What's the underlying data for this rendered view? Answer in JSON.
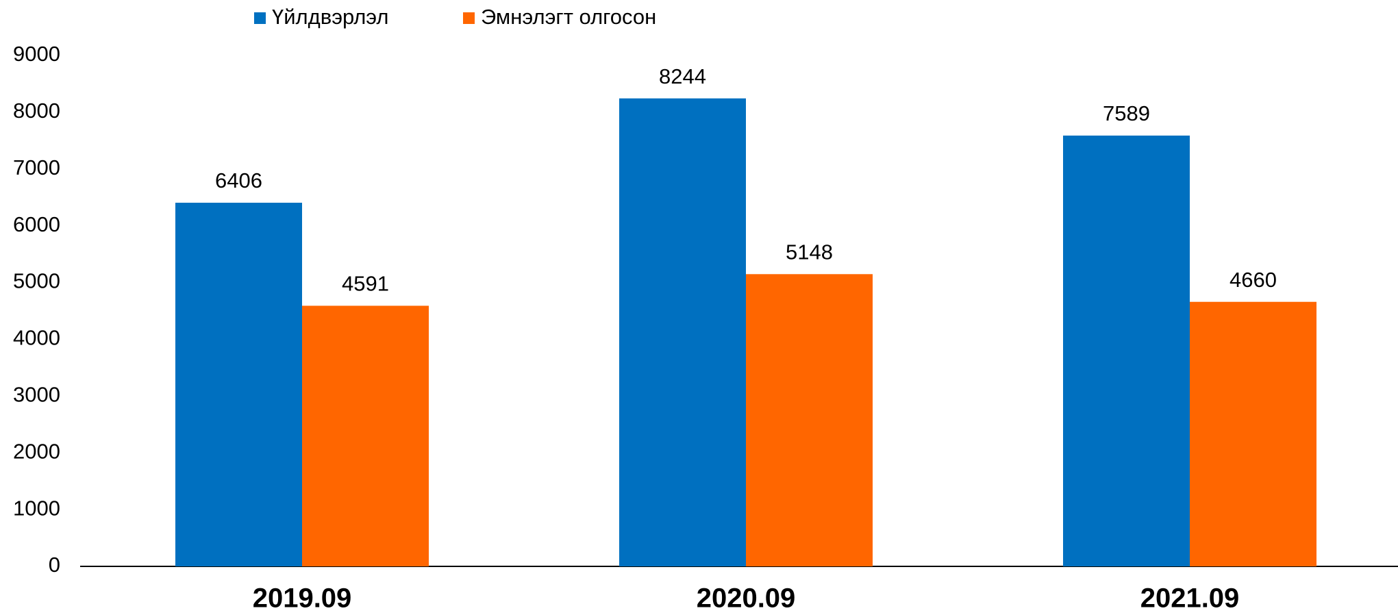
{
  "chart_data": {
    "type": "bar",
    "categories": [
      "2019.09",
      "2020.09",
      "2021.09"
    ],
    "series": [
      {
        "name": "Үйлдвэрлэл",
        "color": "#0070c0",
        "values": [
          6406,
          8244,
          7589
        ]
      },
      {
        "name": "Эмнэлэгт олгосон",
        "color": "#ff6600",
        "values": [
          4591,
          5148,
          4660
        ]
      }
    ],
    "ylim": [
      0,
      9000
    ],
    "yticks": [
      0,
      1000,
      2000,
      3000,
      4000,
      5000,
      6000,
      7000,
      8000,
      9000
    ],
    "grid": false,
    "legend": "top"
  }
}
